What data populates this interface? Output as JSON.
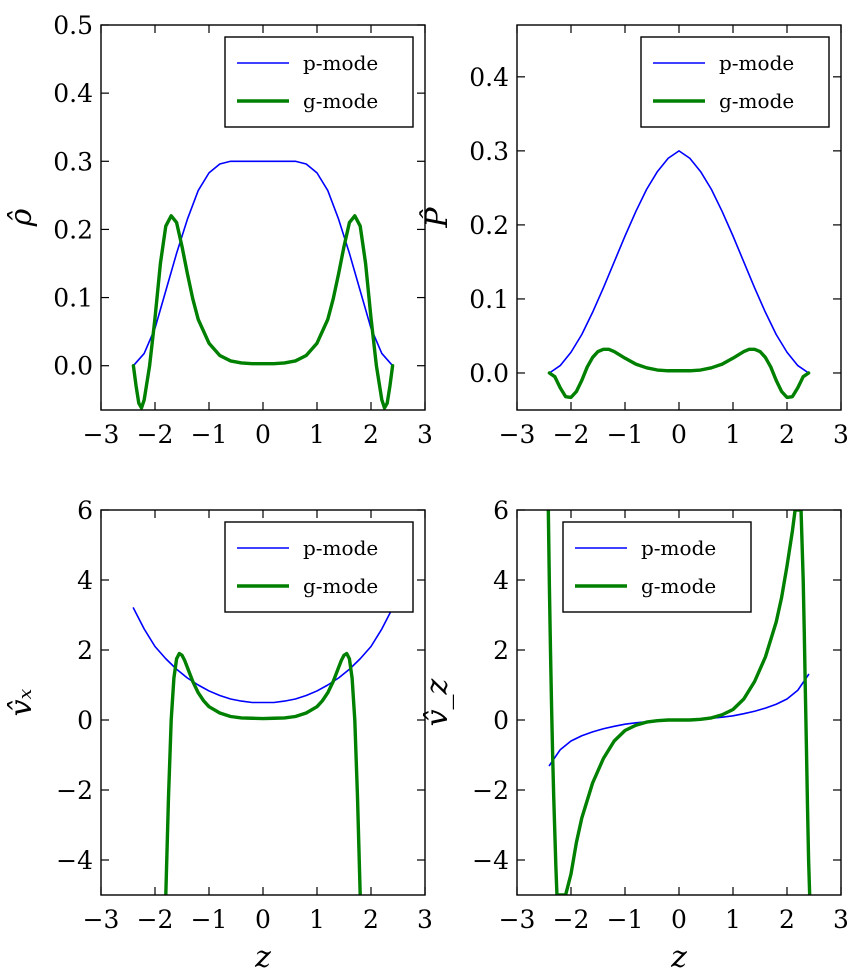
{
  "chart_data": [
    {
      "type": "line",
      "ylabel": "ρ̂",
      "xlabel": "",
      "xlim": [
        -3,
        3
      ],
      "ylim": [
        -0.065,
        0.5
      ],
      "xticks": [
        -3,
        -2,
        -1,
        0,
        1,
        2,
        3
      ],
      "xtick_labels": [
        "−3",
        "−2",
        "−1",
        "0",
        "1",
        "2",
        "3"
      ],
      "yticks": [
        0.0,
        0.1,
        0.2,
        0.3,
        0.4,
        0.5
      ],
      "ytick_labels": [
        "0.0",
        "0.1",
        "0.2",
        "0.3",
        "0.4",
        "0.5"
      ],
      "legend_position": "top-right",
      "series": [
        {
          "name": "p-mode",
          "color": "#0000ff",
          "x": [
            -2.4,
            -2.2,
            -2.0,
            -1.8,
            -1.6,
            -1.4,
            -1.2,
            -1.0,
            -0.8,
            -0.6,
            -0.4,
            -0.2,
            0.0,
            0.2,
            0.4,
            0.6,
            0.8,
            1.0,
            1.2,
            1.4,
            1.6,
            1.8,
            2.0,
            2.2,
            2.4
          ],
          "y": [
            0.0,
            0.018,
            0.055,
            0.11,
            0.165,
            0.215,
            0.257,
            0.283,
            0.296,
            0.3,
            0.3,
            0.3,
            0.3,
            0.3,
            0.3,
            0.3,
            0.296,
            0.283,
            0.257,
            0.215,
            0.165,
            0.11,
            0.055,
            0.018,
            0.0
          ]
        },
        {
          "name": "g-mode",
          "color": "#008000",
          "x": [
            -2.4,
            -2.35,
            -2.3,
            -2.25,
            -2.2,
            -2.1,
            -2.0,
            -1.9,
            -1.8,
            -1.7,
            -1.6,
            -1.5,
            -1.4,
            -1.3,
            -1.2,
            -1.0,
            -0.8,
            -0.6,
            -0.4,
            -0.2,
            0.0,
            0.2,
            0.4,
            0.6,
            0.8,
            1.0,
            1.2,
            1.3,
            1.4,
            1.5,
            1.6,
            1.7,
            1.8,
            1.9,
            2.0,
            2.1,
            2.2,
            2.25,
            2.3,
            2.35,
            2.4
          ],
          "y": [
            0.0,
            -0.03,
            -0.055,
            -0.062,
            -0.05,
            0.0,
            0.07,
            0.15,
            0.205,
            0.22,
            0.21,
            0.175,
            0.135,
            0.098,
            0.068,
            0.033,
            0.015,
            0.007,
            0.004,
            0.003,
            0.003,
            0.003,
            0.004,
            0.007,
            0.015,
            0.033,
            0.068,
            0.098,
            0.135,
            0.175,
            0.21,
            0.22,
            0.205,
            0.15,
            0.07,
            0.0,
            -0.05,
            -0.062,
            -0.055,
            -0.03,
            0.0
          ]
        }
      ]
    },
    {
      "type": "line",
      "ylabel": "P̂",
      "xlabel": "",
      "xlim": [
        -3,
        3
      ],
      "ylim": [
        -0.05,
        0.47
      ],
      "xticks": [
        -3,
        -2,
        -1,
        0,
        1,
        2,
        3
      ],
      "xtick_labels": [
        "−3",
        "−2",
        "−1",
        "0",
        "1",
        "2",
        "3"
      ],
      "yticks": [
        0.0,
        0.1,
        0.2,
        0.3,
        0.4
      ],
      "ytick_labels": [
        "0.0",
        "0.1",
        "0.2",
        "0.3",
        "0.4"
      ],
      "legend_position": "top-right",
      "series": [
        {
          "name": "p-mode",
          "color": "#0000ff",
          "x": [
            -2.4,
            -2.2,
            -2.0,
            -1.8,
            -1.6,
            -1.4,
            -1.2,
            -1.0,
            -0.8,
            -0.6,
            -0.4,
            -0.2,
            0.0,
            0.2,
            0.4,
            0.6,
            0.8,
            1.0,
            1.2,
            1.4,
            1.6,
            1.8,
            2.0,
            2.2,
            2.4
          ],
          "y": [
            0.0,
            0.01,
            0.028,
            0.052,
            0.082,
            0.115,
            0.15,
            0.185,
            0.218,
            0.248,
            0.272,
            0.29,
            0.3,
            0.29,
            0.272,
            0.248,
            0.218,
            0.185,
            0.15,
            0.115,
            0.082,
            0.052,
            0.028,
            0.01,
            0.0
          ]
        },
        {
          "name": "g-mode",
          "color": "#008000",
          "x": [
            -2.4,
            -2.3,
            -2.2,
            -2.1,
            -2.0,
            -1.9,
            -1.8,
            -1.7,
            -1.6,
            -1.5,
            -1.4,
            -1.3,
            -1.2,
            -1.0,
            -0.8,
            -0.6,
            -0.4,
            -0.2,
            0.0,
            0.2,
            0.4,
            0.6,
            0.8,
            1.0,
            1.2,
            1.3,
            1.4,
            1.5,
            1.6,
            1.7,
            1.8,
            1.9,
            2.0,
            2.1,
            2.2,
            2.3,
            2.4
          ],
          "y": [
            0.0,
            -0.005,
            -0.02,
            -0.032,
            -0.033,
            -0.025,
            -0.01,
            0.008,
            0.021,
            0.029,
            0.032,
            0.032,
            0.029,
            0.02,
            0.012,
            0.007,
            0.004,
            0.003,
            0.003,
            0.003,
            0.004,
            0.007,
            0.012,
            0.02,
            0.029,
            0.032,
            0.032,
            0.029,
            0.021,
            0.008,
            -0.01,
            -0.025,
            -0.033,
            -0.032,
            -0.02,
            -0.005,
            0.0
          ]
        }
      ]
    },
    {
      "type": "line",
      "ylabel": "v̂ₓ",
      "xlabel": "z",
      "xlim": [
        -3,
        3
      ],
      "ylim": [
        -5,
        6
      ],
      "xticks": [
        -3,
        -2,
        -1,
        0,
        1,
        2,
        3
      ],
      "xtick_labels": [
        "−3",
        "−2",
        "−1",
        "0",
        "1",
        "2",
        "3"
      ],
      "yticks": [
        -4,
        -2,
        0,
        2,
        4,
        6
      ],
      "ytick_labels": [
        "−4",
        "−2",
        "0",
        "2",
        "4",
        "6"
      ],
      "legend_position": "top-right",
      "series": [
        {
          "name": "p-mode",
          "color": "#0000ff",
          "x": [
            -2.4,
            -2.2,
            -2.0,
            -1.8,
            -1.6,
            -1.4,
            -1.2,
            -1.0,
            -0.8,
            -0.6,
            -0.4,
            -0.2,
            0.0,
            0.2,
            0.4,
            0.6,
            0.8,
            1.0,
            1.2,
            1.4,
            1.6,
            1.8,
            2.0,
            2.2,
            2.4
          ],
          "y": [
            3.2,
            2.6,
            2.1,
            1.75,
            1.45,
            1.2,
            1.0,
            0.83,
            0.7,
            0.6,
            0.54,
            0.5,
            0.5,
            0.5,
            0.54,
            0.6,
            0.7,
            0.83,
            1.0,
            1.2,
            1.45,
            1.75,
            2.1,
            2.6,
            3.2
          ]
        },
        {
          "name": "g-mode",
          "color": "#008000",
          "x": [
            -1.8,
            -1.75,
            -1.7,
            -1.65,
            -1.6,
            -1.55,
            -1.5,
            -1.45,
            -1.4,
            -1.3,
            -1.2,
            -1.1,
            -1.0,
            -0.8,
            -0.6,
            -0.4,
            -0.2,
            0.0,
            0.2,
            0.4,
            0.6,
            0.8,
            1.0,
            1.1,
            1.2,
            1.3,
            1.4,
            1.45,
            1.5,
            1.55,
            1.6,
            1.65,
            1.7,
            1.75,
            1.8
          ],
          "y": [
            -5.0,
            -2.2,
            0.0,
            1.2,
            1.75,
            1.9,
            1.85,
            1.7,
            1.5,
            1.1,
            0.78,
            0.55,
            0.38,
            0.2,
            0.1,
            0.06,
            0.05,
            0.04,
            0.05,
            0.06,
            0.1,
            0.2,
            0.38,
            0.55,
            0.78,
            1.1,
            1.5,
            1.7,
            1.85,
            1.9,
            1.75,
            1.2,
            0.0,
            -2.2,
            -5.0
          ]
        }
      ]
    },
    {
      "type": "line",
      "ylabel": "v̂_z",
      "xlabel": "z",
      "xlim": [
        -3,
        3
      ],
      "ylim": [
        -5,
        6
      ],
      "xticks": [
        -3,
        -2,
        -1,
        0,
        1,
        2,
        3
      ],
      "xtick_labels": [
        "−3",
        "−2",
        "−1",
        "0",
        "1",
        "2",
        "3"
      ],
      "yticks": [
        -4,
        -2,
        0,
        2,
        4,
        6
      ],
      "ytick_labels": [
        "−4",
        "−2",
        "0",
        "2",
        "4",
        "6"
      ],
      "legend_position": "top-left",
      "series": [
        {
          "name": "p-mode",
          "color": "#0000ff",
          "x": [
            -2.4,
            -2.2,
            -2.0,
            -1.8,
            -1.6,
            -1.4,
            -1.2,
            -1.0,
            -0.8,
            -0.6,
            -0.4,
            -0.2,
            0.0,
            0.2,
            0.4,
            0.6,
            0.8,
            1.0,
            1.2,
            1.4,
            1.6,
            1.8,
            2.0,
            2.2,
            2.4
          ],
          "y": [
            -1.3,
            -0.85,
            -0.6,
            -0.45,
            -0.34,
            -0.25,
            -0.18,
            -0.12,
            -0.08,
            -0.05,
            -0.03,
            -0.01,
            0.0,
            0.01,
            0.03,
            0.05,
            0.08,
            0.12,
            0.18,
            0.25,
            0.34,
            0.45,
            0.6,
            0.85,
            1.3
          ]
        },
        {
          "name": "g-mode",
          "color": "#008000",
          "x": [
            -2.42,
            -2.4,
            -2.38,
            -2.36,
            -2.34,
            -2.32,
            -2.3,
            -2.28,
            -2.26,
            -2.24,
            -2.22,
            -2.2,
            -2.15,
            -2.1,
            -2.0,
            -1.9,
            -1.8,
            -1.6,
            -1.4,
            -1.2,
            -1.0,
            -0.8,
            -0.6,
            -0.4,
            -0.2,
            0.0,
            0.2,
            0.4,
            0.6,
            0.8,
            1.0,
            1.2,
            1.4,
            1.6,
            1.8,
            1.9,
            2.0,
            2.1,
            2.15,
            2.2,
            2.22,
            2.24,
            2.26,
            2.28,
            2.3,
            2.32,
            2.34,
            2.36,
            2.38,
            2.4,
            2.42
          ],
          "y": [
            6.0,
            3.8,
            2.0,
            0.4,
            -1.0,
            -2.2,
            -3.2,
            -4.2,
            -5.0,
            -5.0,
            -5.0,
            -5.0,
            -5.0,
            -5.0,
            -4.4,
            -3.5,
            -2.8,
            -1.8,
            -1.1,
            -0.6,
            -0.3,
            -0.15,
            -0.06,
            -0.02,
            0.0,
            0.0,
            0.0,
            0.02,
            0.06,
            0.15,
            0.3,
            0.6,
            1.1,
            1.8,
            2.8,
            3.5,
            4.4,
            5.4,
            6.0,
            6.0,
            6.0,
            6.0,
            6.0,
            5.0,
            4.0,
            2.5,
            0.8,
            -0.8,
            -2.5,
            -4.0,
            -5.0
          ]
        }
      ]
    }
  ]
}
